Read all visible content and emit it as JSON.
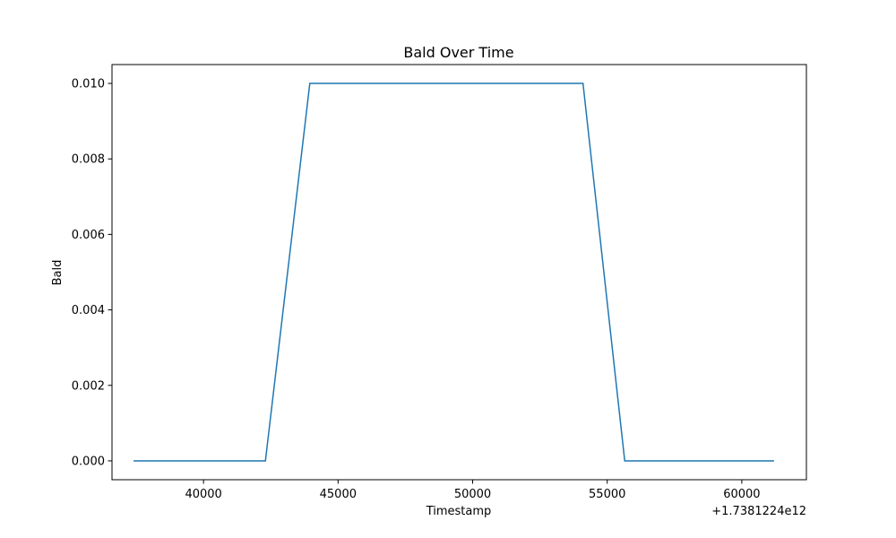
{
  "chart_data": {
    "type": "line",
    "title": "Bald Over Time",
    "xlabel": "Timestamp",
    "ylabel": "Bald",
    "x_offset_label": "+1.7381224e12",
    "xlim": [
      36600,
      62400
    ],
    "ylim": [
      -0.0005,
      0.0105
    ],
    "xticks": [
      40000,
      45000,
      50000,
      55000,
      60000
    ],
    "xtick_labels": [
      "40000",
      "45000",
      "50000",
      "55000",
      "60000"
    ],
    "yticks": [
      0.0,
      0.002,
      0.004,
      0.006,
      0.008,
      0.01
    ],
    "ytick_labels": [
      "0.000",
      "0.002",
      "0.004",
      "0.006",
      "0.008",
      "0.010"
    ],
    "grid": false,
    "legend": "none",
    "series": [
      {
        "color": "#1f77b4",
        "x": [
          37400,
          42300,
          43950,
          54100,
          55650,
          61200
        ],
        "y": [
          0.0,
          0.0,
          0.01,
          0.01,
          0.0,
          0.0
        ]
      }
    ]
  }
}
